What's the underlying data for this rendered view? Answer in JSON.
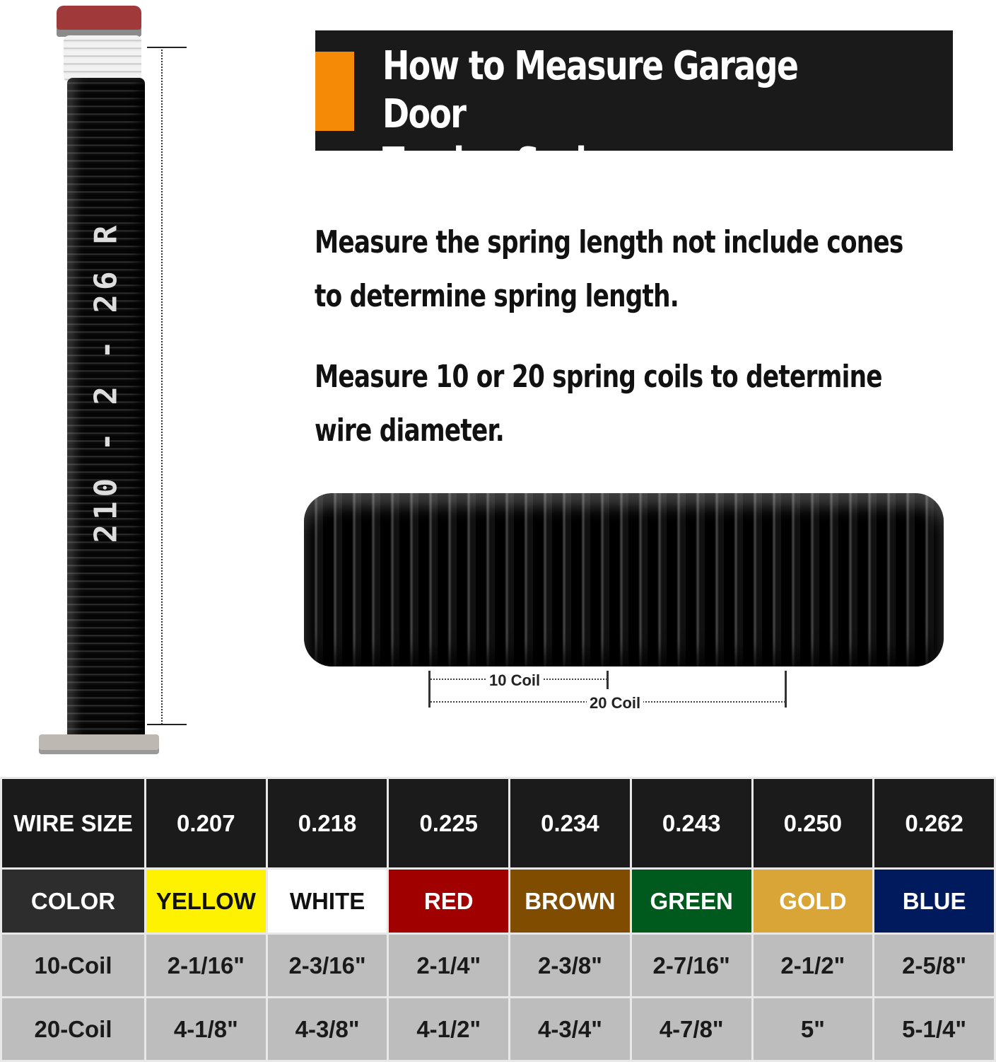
{
  "title": {
    "line1": "How to Measure Garage Door",
    "line2": "Torsion Spring"
  },
  "spring_label": "210 - 2 - 26 R",
  "instructions": [
    {
      "line1": "Measure the spring length not include cones",
      "line2": "to determine spring length."
    },
    {
      "line1": "Measure 10 or 20 spring coils to determine",
      "line2": "wire diameter."
    }
  ],
  "coil_labels": {
    "ten": "10 Coil",
    "twenty": "20 Coil"
  },
  "accent_color": "#f58a07",
  "table": {
    "wire_size": {
      "label": "WIRE SIZE",
      "values": [
        "0.207",
        "0.218",
        "0.225",
        "0.234",
        "0.243",
        "0.250",
        "0.262"
      ]
    },
    "color": {
      "label": "COLOR",
      "values": [
        {
          "name": "YELLOW",
          "bg": "#fff200",
          "fg": "#111"
        },
        {
          "name": "WHITE",
          "bg": "#ffffff",
          "fg": "#111"
        },
        {
          "name": "RED",
          "bg": "#a00000",
          "fg": "#fff"
        },
        {
          "name": "BROWN",
          "bg": "#7f4c00",
          "fg": "#fff"
        },
        {
          "name": "GREEN",
          "bg": "#005a1e",
          "fg": "#fff"
        },
        {
          "name": "GOLD",
          "bg": "#d8a536",
          "fg": "#fff"
        },
        {
          "name": "BLUE",
          "bg": "#001a5e",
          "fg": "#fff"
        }
      ]
    },
    "coil10": {
      "label": "10-Coil",
      "values": [
        "2-1/16\"",
        "2-3/16\"",
        "2-1/4\"",
        "2-3/8\"",
        "2-7/16\"",
        "2-1/2\"",
        "2-5/8\""
      ]
    },
    "coil20": {
      "label": "20-Coil",
      "values": [
        "4-1/8\"",
        "4-3/8\"",
        "4-1/2\"",
        "4-3/4\"",
        "4-7/8\"",
        "5\"",
        "5-1/4\""
      ]
    }
  }
}
